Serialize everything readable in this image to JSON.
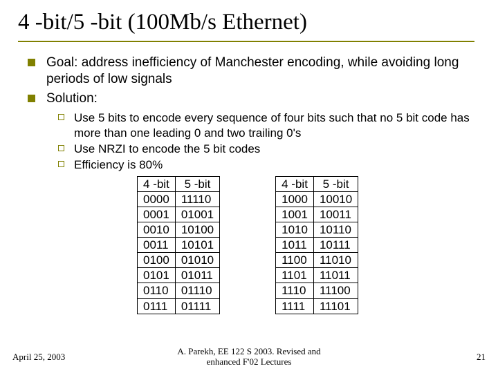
{
  "title": "4 -bit/5 -bit (100Mb/s Ethernet)",
  "bullets": {
    "b0": "Goal: address inefficiency of Manchester encoding, while avoiding long periods of low signals",
    "b1": "Solution:"
  },
  "subbullets": {
    "s0": "Use 5 bits to encode every sequence of four bits such that no 5 bit code has more than one leading 0 and two trailing 0's",
    "s1": "Use NRZI to encode the 5 bit codes",
    "s2": "Efficiency is 80%"
  },
  "tables": {
    "header4": "4 -bit",
    "header5": "5 -bit",
    "left": {
      "col4": [
        "0000",
        "0001",
        "0010",
        "0011",
        "0100",
        "0101",
        "0110",
        "0111"
      ],
      "col5": [
        "11110",
        "01001",
        "10100",
        "10101",
        "01010",
        "01011",
        "01110",
        "01111"
      ]
    },
    "right": {
      "col4": [
        "1000",
        "1001",
        "1010",
        "1011",
        "1100",
        "1101",
        "1110",
        "1111"
      ],
      "col5": [
        "10010",
        "10011",
        "10110",
        "10111",
        "11010",
        "11011",
        "11100",
        "11101"
      ]
    }
  },
  "footer": {
    "date": "April 25, 2003",
    "center_l1": "A. Parekh, EE 122 S 2003. Revised and",
    "center_l2": "enhanced  F'02 Lectures",
    "pagenum": "21"
  },
  "colors": {
    "accent": "#808000",
    "text": "#000000",
    "background": "#ffffff"
  }
}
